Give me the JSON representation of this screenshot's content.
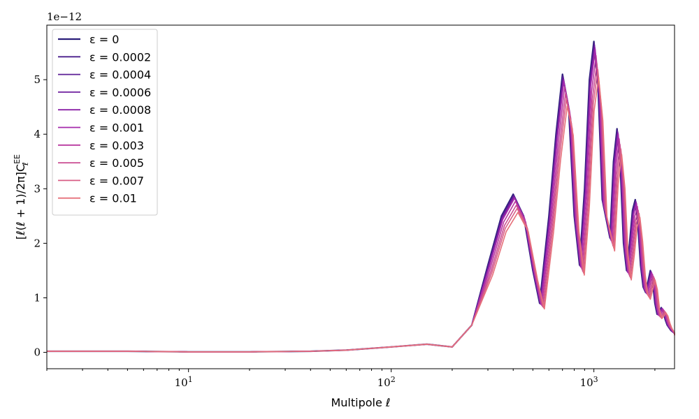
{
  "chart_data": {
    "type": "line",
    "x_scale": "log",
    "xlim": [
      2,
      2500
    ],
    "ylim": [
      -0.3,
      6.0
    ],
    "y_multiplier_label": "1e−12",
    "xlabel": "Multipole  ℓ",
    "ylabel": "[ℓ(ℓ + 1)/2π]CℓEE",
    "ylabel_parts": {
      "main": "[ℓ(ℓ + 1)/2π]C",
      "sub": "ℓ",
      "sup": "EE"
    },
    "x_ticks": [
      {
        "value": 10,
        "base": "10",
        "exp": "1"
      },
      {
        "value": 100,
        "base": "10",
        "exp": "2"
      },
      {
        "value": 1000,
        "base": "10",
        "exp": "3"
      }
    ],
    "y_ticks": [
      0,
      1,
      2,
      3,
      4,
      5
    ],
    "legend_position": "top-left",
    "base_curve_x": [
      2,
      5,
      10,
      20,
      40,
      60,
      100,
      150,
      200,
      250,
      300,
      350,
      400,
      450,
      500,
      540,
      600,
      650,
      700,
      750,
      800,
      850,
      900,
      950,
      1000,
      1050,
      1100,
      1200,
      1250,
      1300,
      1350,
      1400,
      1450,
      1500,
      1550,
      1600,
      1650,
      1700,
      1750,
      1800,
      1850,
      1900,
      1950,
      2000,
      2050,
      2100,
      2150,
      2200,
      2250,
      2300,
      2400,
      2500
    ],
    "base_curve_y": [
      0.02,
      0.02,
      0.01,
      0.01,
      0.02,
      0.04,
      0.1,
      0.15,
      0.1,
      0.5,
      1.6,
      2.5,
      2.9,
      2.5,
      1.5,
      0.9,
      2.5,
      4.0,
      5.1,
      4.5,
      2.5,
      1.6,
      3.0,
      5.0,
      5.7,
      4.8,
      2.8,
      2.1,
      3.5,
      4.1,
      3.4,
      2.0,
      1.5,
      2.0,
      2.6,
      2.8,
      2.3,
      1.6,
      1.2,
      1.1,
      1.3,
      1.5,
      1.3,
      0.9,
      0.7,
      0.75,
      0.82,
      0.75,
      0.6,
      0.5,
      0.4,
      0.35
    ],
    "series": [
      {
        "name": "ε = 0",
        "color": "#2b1e7a",
        "damping": 1.0,
        "shift": 1.0
      },
      {
        "name": "ε = 0.0002",
        "color": "#4a1e8c",
        "damping": 0.995,
        "shift": 1.003
      },
      {
        "name": "ε = 0.0004",
        "color": "#5c1f96",
        "damping": 0.99,
        "shift": 1.006
      },
      {
        "name": "ε = 0.0006",
        "color": "#6f1f9e",
        "damping": 0.985,
        "shift": 1.009
      },
      {
        "name": "ε = 0.0008",
        "color": "#8a21a5",
        "damping": 0.98,
        "shift": 1.012
      },
      {
        "name": "ε = 0.001",
        "color": "#a52aab",
        "damping": 0.975,
        "shift": 1.015
      },
      {
        "name": "ε = 0.003",
        "color": "#b9399f",
        "damping": 0.955,
        "shift": 1.025
      },
      {
        "name": "ε = 0.005",
        "color": "#ca4d92",
        "damping": 0.93,
        "shift": 1.035
      },
      {
        "name": "ε = 0.007",
        "color": "#d85e86",
        "damping": 0.91,
        "shift": 1.045
      },
      {
        "name": "ε = 0.01",
        "color": "#e6707a",
        "damping": 0.885,
        "shift": 1.055
      }
    ]
  }
}
